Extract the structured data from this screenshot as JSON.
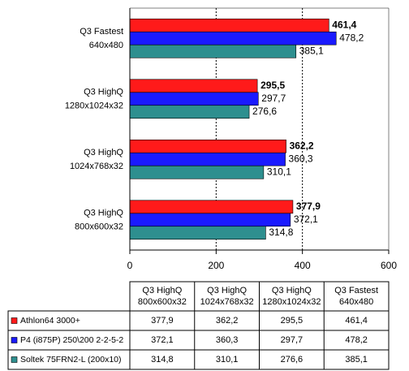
{
  "chart_data": {
    "type": "hbar",
    "categories": [
      [
        "Q3 HighQ",
        "800x600x32"
      ],
      [
        "Q3 HighQ",
        "1024x768x32"
      ],
      [
        "Q3 HighQ",
        "1280x1024x32"
      ],
      [
        "Q3 Fastest",
        "640x480"
      ]
    ],
    "series": [
      {
        "name": "Athlon64 3000+",
        "color": "#ff1a1a",
        "values": [
          377.9,
          362.2,
          295.5,
          461.4
        ],
        "value_labels": [
          "377,9",
          "362,2",
          "295,5",
          "461,4"
        ]
      },
      {
        "name": "P4 (i875P) 250\\200 2-2-5-2",
        "color": "#1a1aff",
        "values": [
          372.1,
          360.3,
          297.7,
          478.2
        ],
        "value_labels": [
          "372,1",
          "360,3",
          "297,7",
          "478,2"
        ]
      },
      {
        "name": "Soltek 75FRN2-L (200x10)",
        "color": "#2e8f8f",
        "values": [
          314.8,
          310.1,
          276.6,
          385.1
        ],
        "value_labels": [
          "314,8",
          "310,1",
          "276,6",
          "385,1"
        ]
      }
    ],
    "xlim": [
      0,
      600
    ],
    "xticks": [
      0,
      200,
      400,
      600
    ],
    "grid": true
  }
}
